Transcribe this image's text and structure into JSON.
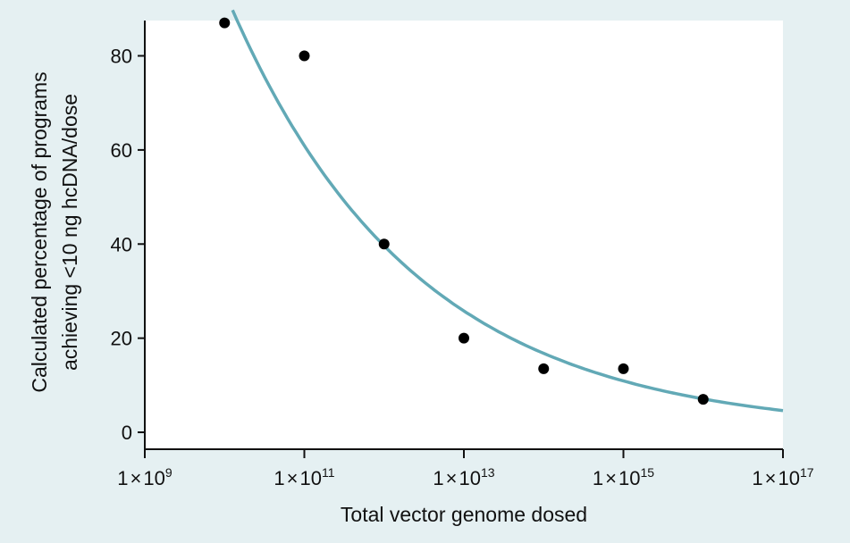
{
  "chart_data": {
    "type": "scatter",
    "title": "",
    "xlabel": "Total vector genome dosed",
    "ylabel_lines": [
      "Calculated percentage of programs",
      "achieving <10 ng hcDNA/dose"
    ],
    "x_scale": "log10",
    "xlim": [
      1000000000.0,
      1e+17
    ],
    "ylim": [
      -3.6,
      87.5
    ],
    "x_ticks": [
      {
        "value": 1000000000.0,
        "mantissa": "1",
        "times": "×",
        "base": "10",
        "exp": "9"
      },
      {
        "value": 100000000000.0,
        "mantissa": "1",
        "times": "×",
        "base": "10",
        "exp": "11"
      },
      {
        "value": 10000000000000.0,
        "mantissa": "1",
        "times": "×",
        "base": "10",
        "exp": "13"
      },
      {
        "value": 1000000000000000.0,
        "mantissa": "1",
        "times": "×",
        "base": "10",
        "exp": "15"
      },
      {
        "value": 1e+17,
        "mantissa": "1",
        "times": "×",
        "base": "10",
        "exp": "17"
      }
    ],
    "y_ticks": [
      0,
      20,
      40,
      60,
      80
    ],
    "grid": false,
    "points": [
      {
        "x": 10000000000.0,
        "y": 87
      },
      {
        "x": 100000000000.0,
        "y": 80
      },
      {
        "x": 1000000000000.0,
        "y": 40
      },
      {
        "x": 10000000000000.0,
        "y": 20
      },
      {
        "x": 100000000000000.0,
        "y": 13.5
      },
      {
        "x": 1000000000000000.0,
        "y": 13.5
      },
      {
        "x": 1e+16,
        "y": 7
      }
    ],
    "fit_curve": {
      "description_formula": "y = 144 * exp(-0.43 * (log10(x) - 9))",
      "a": 144,
      "b": 0.43,
      "x_from": 12600000000.0,
      "x_to": 1e+17
    },
    "colors": {
      "background": "#e5f0f2",
      "plot_bg": "#ffffff",
      "points": "#000000",
      "curve": "#62a9b6",
      "axis": "#111111"
    }
  }
}
